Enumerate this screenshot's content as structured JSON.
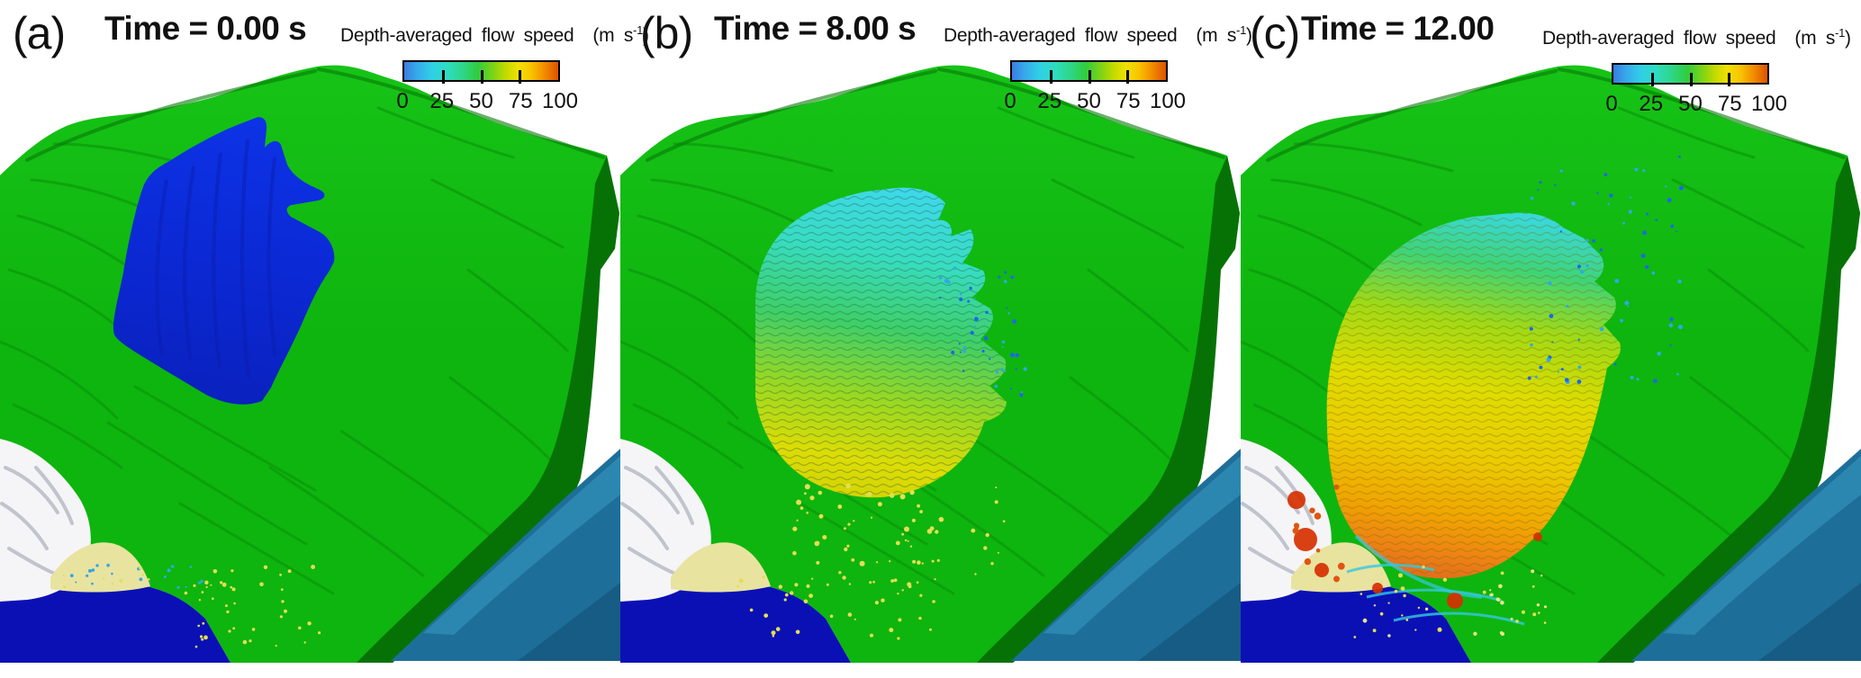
{
  "panels": [
    {
      "id": "a",
      "label": "(a)",
      "title": "Time = 0.00 s",
      "slide": {
        "stops": [
          [
            0,
            "#0d33e6"
          ],
          [
            55,
            "#0b28d2"
          ],
          [
            100,
            "#0a21bd"
          ]
        ],
        "texture": "#0a1cae"
      }
    },
    {
      "id": "b",
      "label": "(b)",
      "title": "Time = 8.00 s",
      "slide": {
        "stops": [
          [
            0,
            "#3ed8ea"
          ],
          [
            22,
            "#38dcc2"
          ],
          [
            45,
            "#3ecf68"
          ],
          [
            68,
            "#9ad822"
          ],
          [
            88,
            "#dedc04"
          ],
          [
            100,
            "#d4d404"
          ]
        ],
        "texture": "#1c5c38"
      }
    },
    {
      "id": "c",
      "label": "(c)",
      "title": "Time = 12.00",
      "slide": {
        "stops": [
          [
            0,
            "#38d8da"
          ],
          [
            14,
            "#3ed478"
          ],
          [
            30,
            "#a0da16"
          ],
          [
            48,
            "#dedc00"
          ],
          [
            66,
            "#eccc00"
          ],
          [
            82,
            "#f0a800"
          ],
          [
            93,
            "#ee8414"
          ],
          [
            100,
            "#e2701c"
          ]
        ],
        "texture": "#7a6a00",
        "hot": "#d63000",
        "splash": "#35c8e0"
      }
    }
  ],
  "colorbar": {
    "label": "Depth-averaged flow speed",
    "unit_open": "(m s",
    "unit_sup": "-1",
    "unit_close": ")",
    "min": 0,
    "max": 100,
    "ticks": [
      "0",
      "25",
      "50",
      "75",
      "100"
    ],
    "gradient": [
      [
        0,
        "#3a7ce0"
      ],
      [
        8,
        "#37a8ea"
      ],
      [
        18,
        "#2fd0e6"
      ],
      [
        28,
        "#2fdcc0"
      ],
      [
        38,
        "#2ed688"
      ],
      [
        48,
        "#31cc3e"
      ],
      [
        58,
        "#7fd414"
      ],
      [
        66,
        "#c4da00"
      ],
      [
        74,
        "#f0e000"
      ],
      [
        82,
        "#f8c600"
      ],
      [
        90,
        "#f49400"
      ],
      [
        100,
        "#dd5200"
      ]
    ]
  },
  "scene_colors": {
    "background": "#ffffff",
    "terrain": "#0eb50e",
    "terrain_hi": "#17c317",
    "terrain_shade": "#0a8f0a",
    "ridge_dark": "#077a07",
    "side_face": "#067206",
    "water": "#0b10b5",
    "slab": "#1d6f9a",
    "slab_light": "#2f8ab2",
    "slab_dark": "#175c84",
    "rock": "#f5f5f7",
    "rock_shade": "#b4b6c2",
    "sand": "#e9e3a0",
    "speckle_yellow": "#e4de54",
    "speckle_cyan": "#2fa8e8",
    "speckle_blue": "#1f66ec",
    "text": "#111111"
  }
}
